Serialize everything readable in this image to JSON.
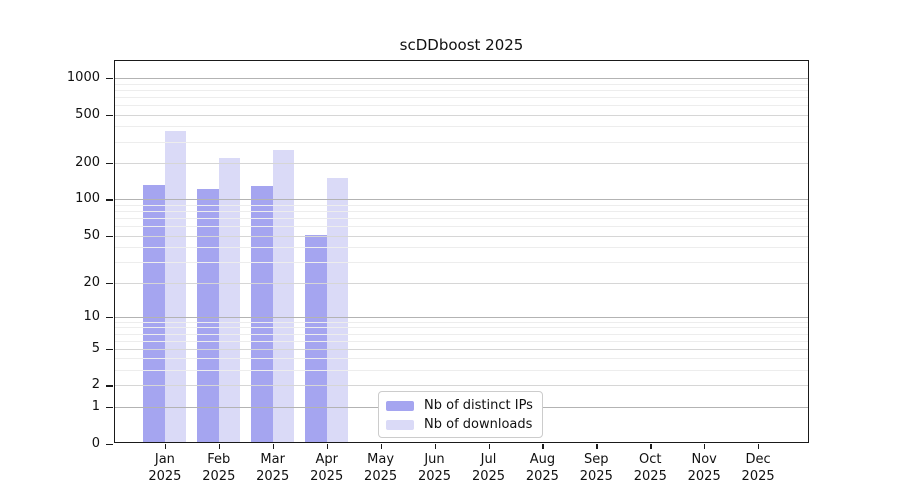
{
  "page": {
    "background": "#ffffff"
  },
  "chart_data": {
    "type": "bar",
    "title": "scDDboost 2025",
    "categories": [
      "Jan",
      "Feb",
      "Mar",
      "Apr",
      "May",
      "Jun",
      "Jul",
      "Aug",
      "Sep",
      "Oct",
      "Nov",
      "Dec"
    ],
    "x_tick_year": "2025",
    "series": [
      {
        "name": "Nb of distinct IPs",
        "color": "#a5a5f0",
        "values": [
          130,
          120,
          127,
          50,
          null,
          null,
          null,
          null,
          null,
          null,
          null,
          null
        ]
      },
      {
        "name": "Nb of downloads",
        "color": "#dadaf7",
        "values": [
          365,
          220,
          255,
          150,
          null,
          null,
          null,
          null,
          null,
          null,
          null,
          null
        ]
      }
    ],
    "y_axis": {
      "ticks": [
        0,
        1,
        2,
        5,
        10,
        20,
        50,
        100,
        200,
        500,
        1000
      ],
      "scale": "log10(value+1)",
      "range_top_visible": 1300
    },
    "grid": "horizontal major + log minor gridlines, drawn over bars",
    "legend_position": "bottom-center"
  }
}
